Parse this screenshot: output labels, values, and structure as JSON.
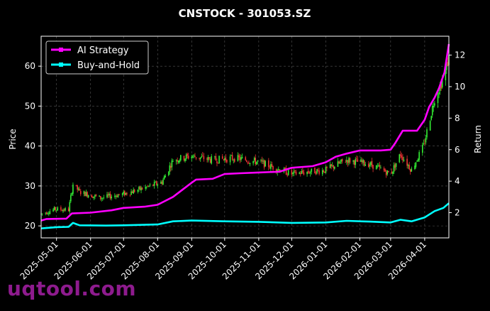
{
  "chart_data": {
    "type": "line",
    "title": "CNSTOCK - 301053.SZ",
    "ylabel_left": "Price",
    "ylabel_right": "Return",
    "x_ticks": [
      "2025-05-01",
      "2025-06-01",
      "2025-07-01",
      "2025-08-01",
      "2025-09-01",
      "2025-10-01",
      "2025-11-01",
      "2025-12-01",
      "2026-01-01",
      "2026-02-01",
      "2026-03-01",
      "2026-04-01"
    ],
    "x_range": [
      "2025-04-17",
      "2026-04-23"
    ],
    "y_left_ticks": [
      20,
      30,
      40,
      50,
      60
    ],
    "y_left_range": [
      17,
      67.5
    ],
    "y_right_ticks": [
      2,
      4,
      6,
      8,
      10,
      12
    ],
    "y_right_range": [
      0.4,
      13.2
    ],
    "grid": true,
    "legend_position": "top-left",
    "colors": {
      "ai": "#ff00ff",
      "bh": "#00ffff",
      "up": "#33ee33",
      "down": "#ee3333"
    },
    "price_keypoints": [
      [
        "2025-04-17",
        23.0
      ],
      [
        "2025-04-30",
        24.2
      ],
      [
        "2025-05-12",
        24.0
      ],
      [
        "2025-05-16",
        30.5
      ],
      [
        "2025-05-22",
        28.5
      ],
      [
        "2025-06-10",
        27.0
      ],
      [
        "2025-07-01",
        28.0
      ],
      [
        "2025-07-20",
        29.5
      ],
      [
        "2025-08-05",
        31.0
      ],
      [
        "2025-08-15",
        36.5
      ],
      [
        "2025-09-01",
        37.5
      ],
      [
        "2025-09-20",
        36.5
      ],
      [
        "2025-10-10",
        37.0
      ],
      [
        "2025-11-01",
        36.0
      ],
      [
        "2025-12-01",
        33.0
      ],
      [
        "2025-12-15",
        33.5
      ],
      [
        "2026-01-01",
        34.0
      ],
      [
        "2026-01-20",
        36.5
      ],
      [
        "2026-02-10",
        35.5
      ],
      [
        "2026-03-01",
        33.0
      ],
      [
        "2026-03-10",
        38.0
      ],
      [
        "2026-03-20",
        34.0
      ],
      [
        "2026-03-31",
        40.0
      ],
      [
        "2026-04-10",
        52.0
      ],
      [
        "2026-04-18",
        57.0
      ],
      [
        "2026-04-23",
        62.0
      ]
    ],
    "series": [
      {
        "name": "AI Strategy",
        "color": "#ff00ff",
        "points": [
          [
            "2025-04-17",
            1.5
          ],
          [
            "2025-04-22",
            1.6
          ],
          [
            "2025-05-10",
            1.62
          ],
          [
            "2025-05-15",
            1.95
          ],
          [
            "2025-06-01",
            2.0
          ],
          [
            "2025-06-20",
            2.15
          ],
          [
            "2025-07-01",
            2.3
          ],
          [
            "2025-07-20",
            2.38
          ],
          [
            "2025-08-01",
            2.5
          ],
          [
            "2025-08-15",
            3.0
          ],
          [
            "2025-09-01",
            3.9
          ],
          [
            "2025-09-05",
            4.1
          ],
          [
            "2025-09-20",
            4.15
          ],
          [
            "2025-10-01",
            4.45
          ],
          [
            "2025-10-15",
            4.5
          ],
          [
            "2025-11-01",
            4.55
          ],
          [
            "2025-11-20",
            4.6
          ],
          [
            "2025-12-01",
            4.85
          ],
          [
            "2025-12-20",
            4.95
          ],
          [
            "2026-01-01",
            5.2
          ],
          [
            "2026-01-10",
            5.55
          ],
          [
            "2026-01-20",
            5.75
          ],
          [
            "2026-02-01",
            5.95
          ],
          [
            "2026-02-20",
            5.95
          ],
          [
            "2026-03-01",
            6.0
          ],
          [
            "2026-03-05",
            6.4
          ],
          [
            "2026-03-12",
            7.2
          ],
          [
            "2026-03-25",
            7.2
          ],
          [
            "2026-04-01",
            7.9
          ],
          [
            "2026-04-05",
            8.7
          ],
          [
            "2026-04-10",
            9.3
          ],
          [
            "2026-04-14",
            9.9
          ],
          [
            "2026-04-19",
            10.9
          ],
          [
            "2026-04-23",
            12.7
          ]
        ]
      },
      {
        "name": "Buy-and-Hold",
        "color": "#00ffff",
        "points": [
          [
            "2025-04-17",
            1.0
          ],
          [
            "2025-05-01",
            1.08
          ],
          [
            "2025-05-12",
            1.1
          ],
          [
            "2025-05-16",
            1.35
          ],
          [
            "2025-05-22",
            1.2
          ],
          [
            "2025-06-15",
            1.18
          ],
          [
            "2025-07-01",
            1.2
          ],
          [
            "2025-08-01",
            1.25
          ],
          [
            "2025-08-15",
            1.45
          ],
          [
            "2025-09-01",
            1.5
          ],
          [
            "2025-10-01",
            1.45
          ],
          [
            "2025-11-01",
            1.42
          ],
          [
            "2025-12-01",
            1.35
          ],
          [
            "2026-01-01",
            1.38
          ],
          [
            "2026-01-20",
            1.48
          ],
          [
            "2026-02-10",
            1.43
          ],
          [
            "2026-03-01",
            1.38
          ],
          [
            "2026-03-10",
            1.55
          ],
          [
            "2026-03-20",
            1.45
          ],
          [
            "2026-04-01",
            1.7
          ],
          [
            "2026-04-10",
            2.1
          ],
          [
            "2026-04-18",
            2.3
          ],
          [
            "2026-04-23",
            2.6
          ]
        ]
      }
    ]
  },
  "watermark": {
    "text": "uqtool.com"
  }
}
